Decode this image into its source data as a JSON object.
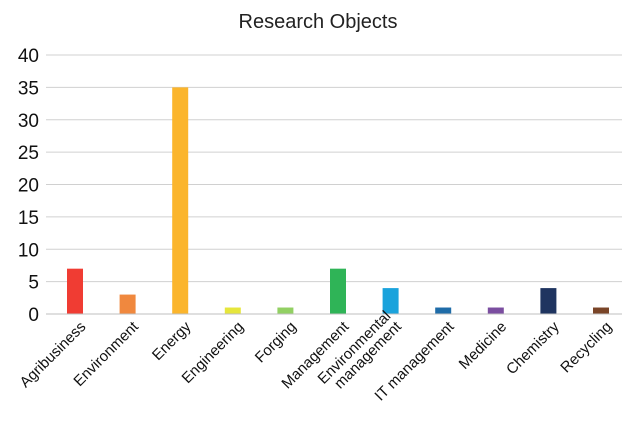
{
  "chart_data": {
    "type": "bar",
    "title": "Research Objects",
    "xlabel": "",
    "ylabel": "",
    "ylim": [
      0,
      40
    ],
    "yticks": [
      0,
      5,
      10,
      15,
      20,
      25,
      30,
      35,
      40
    ],
    "grid": true,
    "legend": "none",
    "categories": [
      [
        "Agribusiness"
      ],
      [
        "Environment"
      ],
      [
        "Energy"
      ],
      [
        "Engineering"
      ],
      [
        "Forging"
      ],
      [
        "Management"
      ],
      [
        "Environmental",
        "management"
      ],
      [
        "IT management"
      ],
      [
        "Medicine"
      ],
      [
        "Chemistry"
      ],
      [
        "Recycling"
      ]
    ],
    "values": [
      7,
      3,
      35,
      1,
      1,
      7,
      4,
      1,
      1,
      4,
      1
    ],
    "colors": [
      "#f03c33",
      "#f0883e",
      "#fbb52c",
      "#e6e63c",
      "#92d063",
      "#2fb457",
      "#1aa3dc",
      "#1f6ca8",
      "#7b4ea0",
      "#1f3460",
      "#7a4528"
    ]
  }
}
